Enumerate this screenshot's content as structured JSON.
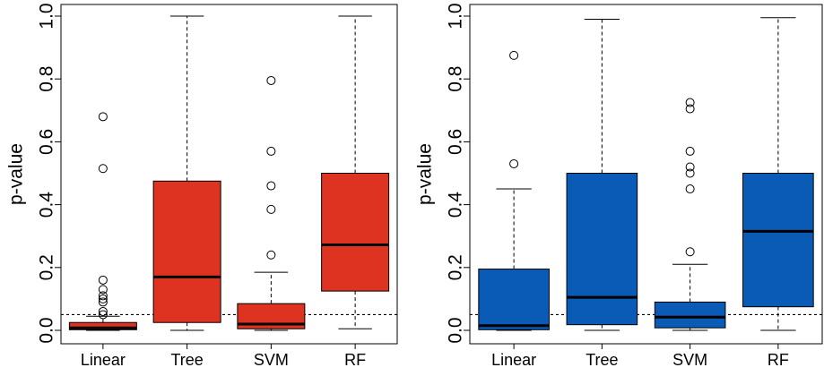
{
  "chart_data": [
    {
      "type": "boxplot",
      "ylabel": "p-value",
      "ylim": [
        0,
        1
      ],
      "yticks": [
        "0.0",
        "0.2",
        "0.4",
        "0.6",
        "0.8",
        "1.0"
      ],
      "ytick_values": [
        0,
        0.2,
        0.4,
        0.6,
        0.8,
        1.0
      ],
      "categories": [
        "Linear",
        "Tree",
        "SVM",
        "RF"
      ],
      "fill_color": "#dd3320",
      "reference_line": 0.05,
      "boxes": [
        {
          "category": "Linear",
          "whisker_low": 0.0,
          "q1": 0.002,
          "median": 0.008,
          "q3": 0.025,
          "whisker_high": 0.045,
          "outliers": [
            0.05,
            0.06,
            0.09,
            0.1,
            0.11,
            0.13,
            0.16,
            0.515,
            0.68
          ]
        },
        {
          "category": "Tree",
          "whisker_low": 0.0,
          "q1": 0.025,
          "median": 0.17,
          "q3": 0.475,
          "whisker_high": 1.0,
          "outliers": []
        },
        {
          "category": "SVM",
          "whisker_low": 0.0,
          "q1": 0.005,
          "median": 0.02,
          "q3": 0.085,
          "whisker_high": 0.185,
          "outliers": [
            0.24,
            0.385,
            0.46,
            0.57,
            0.795
          ]
        },
        {
          "category": "RF",
          "whisker_low": 0.005,
          "q1": 0.125,
          "median": 0.272,
          "q3": 0.5,
          "whisker_high": 1.0,
          "outliers": []
        }
      ]
    },
    {
      "type": "boxplot",
      "ylabel": "p-value",
      "ylim": [
        0,
        1
      ],
      "yticks": [
        "0.0",
        "0.2",
        "0.4",
        "0.6",
        "0.8",
        "1.0"
      ],
      "ytick_values": [
        0,
        0.2,
        0.4,
        0.6,
        0.8,
        1.0
      ],
      "categories": [
        "Linear",
        "Tree",
        "SVM",
        "RF"
      ],
      "fill_color": "#0a5bb5",
      "reference_line": 0.05,
      "boxes": [
        {
          "category": "Linear",
          "whisker_low": 0.0,
          "q1": 0.002,
          "median": 0.015,
          "q3": 0.195,
          "whisker_high": 0.45,
          "outliers": [
            0.53,
            0.875
          ]
        },
        {
          "category": "Tree",
          "whisker_low": 0.0,
          "q1": 0.018,
          "median": 0.105,
          "q3": 0.5,
          "whisker_high": 0.99,
          "outliers": []
        },
        {
          "category": "SVM",
          "whisker_low": 0.0,
          "q1": 0.008,
          "median": 0.042,
          "q3": 0.09,
          "whisker_high": 0.21,
          "outliers": [
            0.25,
            0.45,
            0.5,
            0.52,
            0.57,
            0.705,
            0.725
          ]
        },
        {
          "category": "RF",
          "whisker_low": 0.0,
          "q1": 0.075,
          "median": 0.315,
          "q3": 0.5,
          "whisker_high": 0.995,
          "outliers": []
        }
      ]
    }
  ]
}
